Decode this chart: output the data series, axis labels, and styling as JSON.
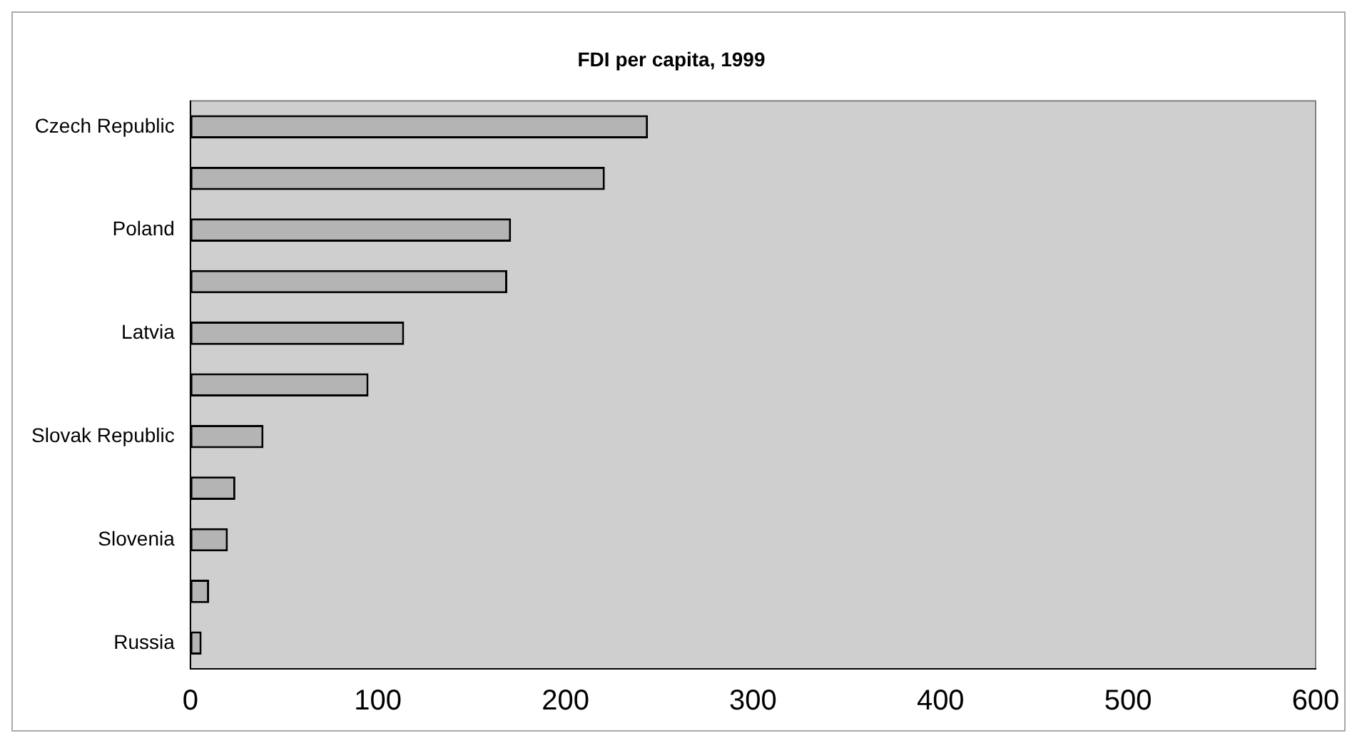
{
  "chart_data": {
    "type": "bar",
    "orientation": "horizontal",
    "title": "FDI per capita, 1999",
    "categories": [
      "Czech Republic",
      null,
      "Poland",
      null,
      "Latvia",
      null,
      "Slovak Republic",
      null,
      "Slovenia",
      null,
      "Russia"
    ],
    "values": [
      244,
      221,
      171,
      169,
      114,
      95,
      39,
      24,
      20,
      10,
      6
    ],
    "color": "#b4b4b4",
    "xlim": [
      0,
      600
    ],
    "xticks": [
      0,
      100,
      200,
      300,
      400,
      500,
      600
    ],
    "grid": false,
    "legend": false
  }
}
